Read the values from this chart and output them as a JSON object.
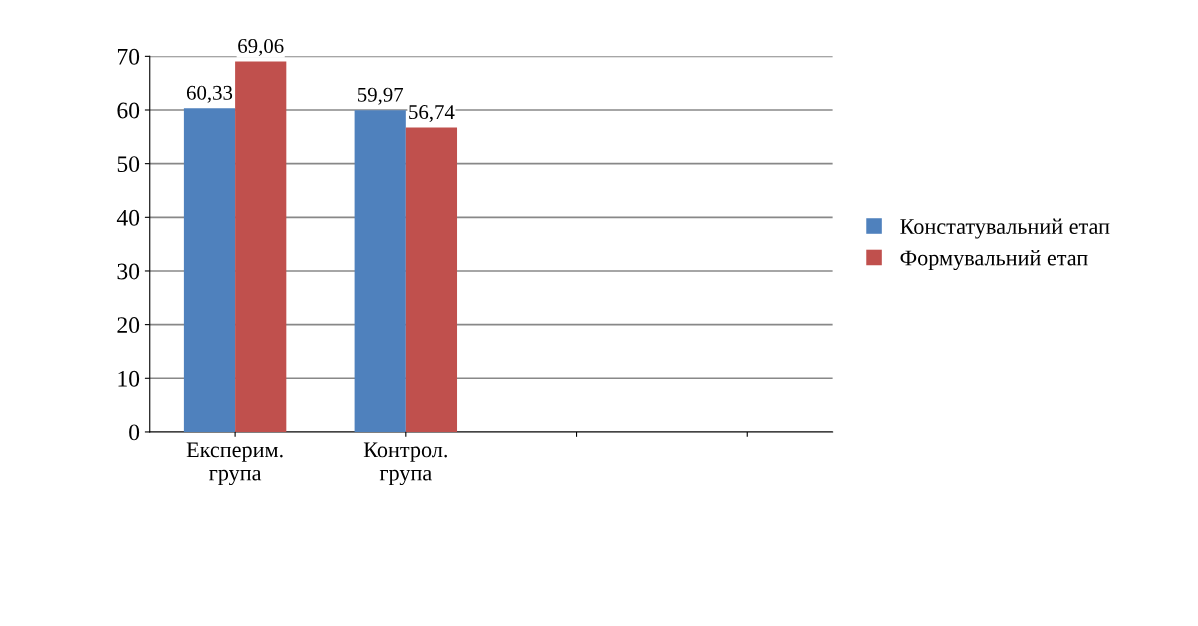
{
  "chart_data": {
    "type": "bar",
    "categories": [
      "Експерим.\nгрупа",
      "Контрол.\nгрупа",
      null,
      null
    ],
    "series": [
      {
        "name": "Констатувальний етап",
        "color": "#4f81bd",
        "values": [
          60.33,
          59.97,
          null,
          null
        ],
        "value_labels": [
          "60,33",
          "59,97",
          null,
          null
        ]
      },
      {
        "name": "Формувальний етап",
        "color": "#c0504d",
        "values": [
          69.06,
          56.74,
          null,
          null
        ],
        "value_labels": [
          "69,06",
          "56,74",
          null,
          null
        ]
      }
    ],
    "ylim": [
      0,
      70
    ],
    "yticks": [
      0,
      10,
      20,
      30,
      40,
      50,
      60,
      70
    ],
    "grid": "y",
    "legend": "right"
  }
}
